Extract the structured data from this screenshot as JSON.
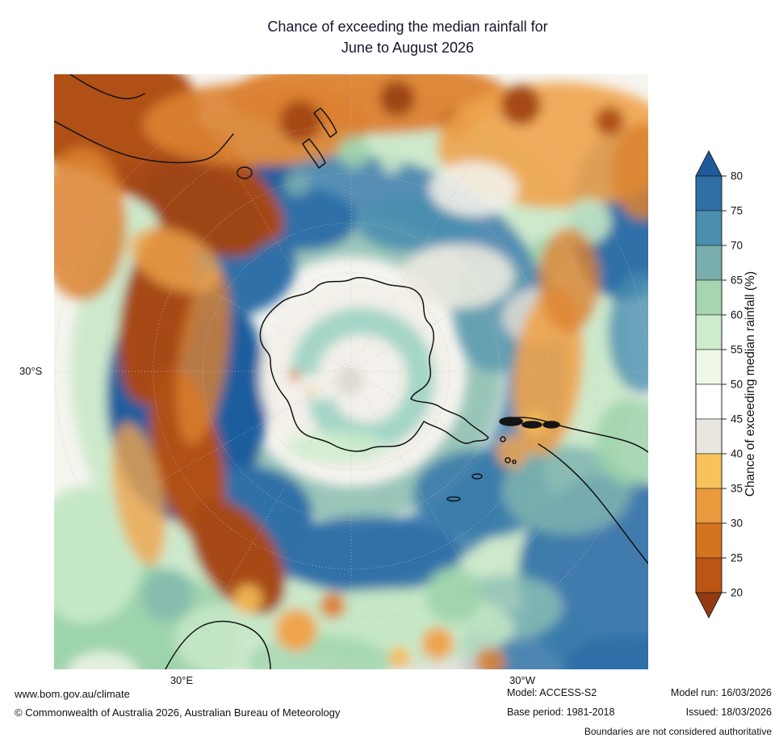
{
  "title": {
    "line1": "Chance of exceeding the median rainfall for",
    "line2": "June to August 2026"
  },
  "map": {
    "lat_label": "30°S",
    "lon_label_left": "30°E",
    "lon_label_right": "30°W"
  },
  "colorbar": {
    "axis_label": "Chance of exceeding median rainfall (%)",
    "ticks": [
      "80",
      "75",
      "70",
      "65",
      "60",
      "55",
      "50",
      "45",
      "40",
      "35",
      "30",
      "25",
      "20"
    ],
    "top_arrow_color": "#1d5b9d",
    "bottom_arrow_color": "#943a10",
    "bands": [
      {
        "range": "75-80",
        "color": "#2e6fa7"
      },
      {
        "range": "70-75",
        "color": "#4b8fb0"
      },
      {
        "range": "65-70",
        "color": "#79aeac"
      },
      {
        "range": "60-65",
        "color": "#a5d6af"
      },
      {
        "range": "55-60",
        "color": "#cdeccc"
      },
      {
        "range": "50-55",
        "color": "#eef7e8"
      },
      {
        "range": "45-50",
        "color": "#ffffff"
      },
      {
        "range": "40-45",
        "color": "#e9e6df"
      },
      {
        "range": "35-40",
        "color": "#f9c35c"
      },
      {
        "range": "30-35",
        "color": "#ec9a3e"
      },
      {
        "range": "25-30",
        "color": "#d4741f"
      },
      {
        "range": "20-25",
        "color": "#bc5414"
      }
    ]
  },
  "footer": {
    "left1": "www.bom.gov.au/climate",
    "left2": "© Commonwealth of Australia 2026, Australian Bureau of Meteorology",
    "mid1": "Model: ACCESS-S2",
    "mid2": "Base period: 1981-2018",
    "right1": "Model run: 16/03/2026",
    "right2": "Issued: 18/03/2026",
    "note": "Boundaries are not considered authoritative"
  }
}
